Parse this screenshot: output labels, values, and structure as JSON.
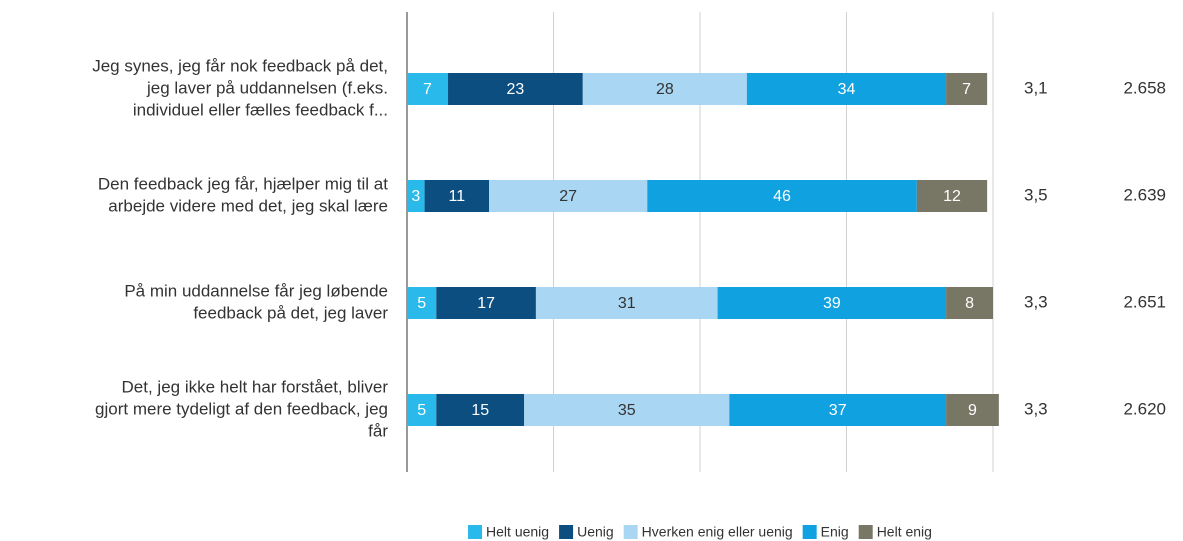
{
  "chart_data": {
    "type": "stacked_bar_horizontal",
    "categories": [
      [
        "Jeg synes, jeg får nok feedback på det,",
        "jeg laver på uddannelsen (f.eks.",
        "individuel eller fælles feedback f..."
      ],
      [
        "Den feedback jeg får, hjælper mig til at",
        "arbejde videre med det, jeg skal lære"
      ],
      [
        "På min uddannelse får jeg løbende",
        "feedback på det, jeg laver"
      ],
      [
        "Det, jeg ikke helt har forstået, bliver",
        "gjort mere tydeligt af den feedback, jeg",
        "får"
      ]
    ],
    "series": [
      {
        "name": "Helt uenig",
        "color": "#29b9ea",
        "values": [
          7,
          3,
          5,
          5
        ]
      },
      {
        "name": "Uenig",
        "color": "#0b4e7f",
        "values": [
          23,
          11,
          17,
          15
        ]
      },
      {
        "name": "Hverken enig eller uenig",
        "color": "#a9d6f3",
        "values": [
          28,
          27,
          31,
          35
        ]
      },
      {
        "name": "Enig",
        "color": "#0fa1e0",
        "values": [
          34,
          46,
          39,
          37
        ]
      },
      {
        "name": "Helt enig",
        "color": "#787664",
        "values": [
          7,
          12,
          8,
          9
        ]
      }
    ],
    "means": [
      "3,1",
      "3,5",
      "3,3",
      "3,3"
    ],
    "counts": [
      "2.658",
      "2.639",
      "2.651",
      "2.620"
    ],
    "xlim": [
      0,
      100
    ],
    "xticks": [
      0,
      25,
      50,
      75,
      100
    ],
    "grid": true,
    "legend": "bottom"
  }
}
